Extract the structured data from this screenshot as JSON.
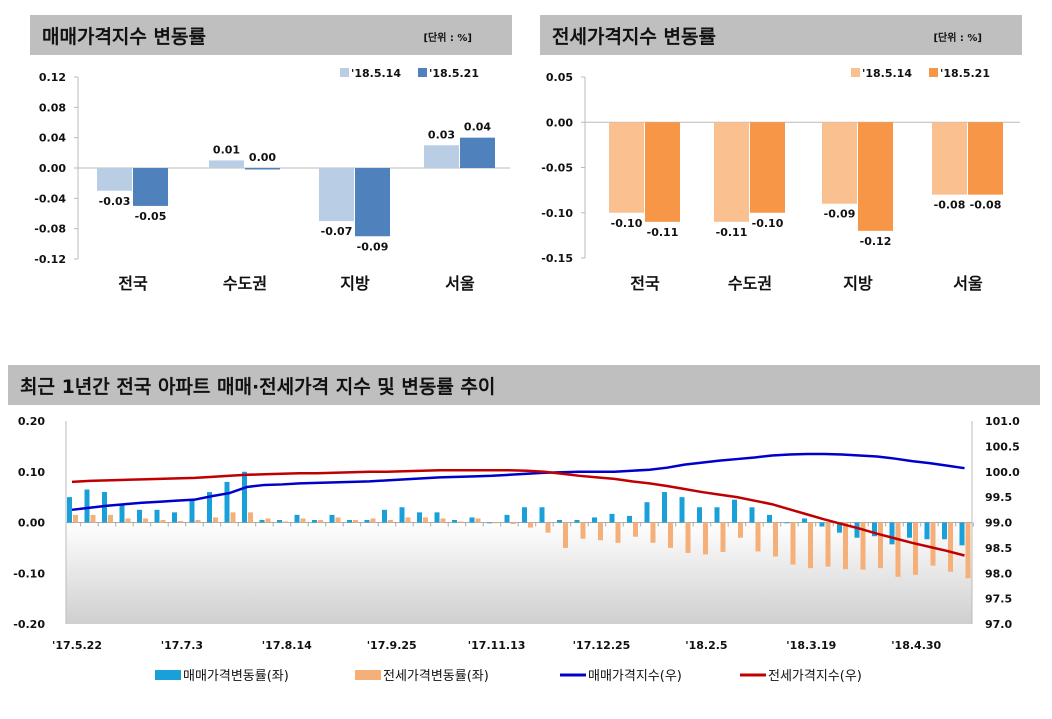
{
  "chart_data": [
    {
      "type": "bar",
      "title": "매매가격지수 변동률",
      "unit_note": "[단위 : %]",
      "categories": [
        "전국",
        "수도권",
        "지방",
        "서울"
      ],
      "series": [
        {
          "name": "'18.5.14",
          "values": [
            -0.03,
            0.01,
            -0.07,
            0.03
          ],
          "color": "#b9cde5"
        },
        {
          "name": "'18.5.21",
          "values": [
            -0.05,
            0.0,
            -0.09,
            0.04
          ],
          "color": "#4f81bd"
        }
      ],
      "yticks": [
        "0.12",
        "0.08",
        "0.04",
        "0.00",
        "-0.04",
        "-0.08",
        "-0.12"
      ],
      "ylim": [
        -0.12,
        0.12
      ],
      "legend": "top-right"
    },
    {
      "type": "bar",
      "title": "전세가격지수 변동률",
      "unit_note": "[단위 : %]",
      "categories": [
        "전국",
        "수도권",
        "지방",
        "서울"
      ],
      "series": [
        {
          "name": "'18.5.14",
          "values": [
            -0.1,
            -0.11,
            -0.09,
            -0.08
          ],
          "color": "#fac090"
        },
        {
          "name": "'18.5.21",
          "values": [
            -0.11,
            -0.1,
            -0.12,
            -0.08
          ],
          "color": "#f79646"
        }
      ],
      "yticks": [
        "0.05",
        "0.00",
        "-0.05",
        "-0.10",
        "-0.15"
      ],
      "ylim": [
        -0.15,
        0.05
      ],
      "legend": "top-right"
    },
    {
      "type": "bar+line",
      "title": "최근 1년간 전국 아파트 매매·전세가격 지수 및 변동률 추이",
      "xticks": [
        "'17.5.22",
        "'17.7.3",
        "'17.8.14",
        "'17.9.25",
        "'17.11.13",
        "'17.12.25",
        "'18.2.5",
        "'18.3.19",
        "'18.4.30"
      ],
      "yticks_left": [
        "0.20",
        "0.10",
        "0.00",
        "-0.10",
        "-0.20"
      ],
      "ylim_left": [
        -0.2,
        0.2
      ],
      "yticks_right": [
        "101.0",
        "100.5",
        "100.0",
        "99.5",
        "99.0",
        "98.5",
        "98.0",
        "97.5",
        "97.0"
      ],
      "ylim_right": [
        97.0,
        101.0
      ],
      "legend": "bottom",
      "series": [
        {
          "name": "매매가격변동률(좌)",
          "kind": "bar",
          "axis": "left",
          "color": "#1aa0d8",
          "values": [
            0.05,
            0.065,
            0.06,
            0.035,
            0.025,
            0.025,
            0.02,
            0.045,
            0.06,
            0.08,
            0.1,
            0.005,
            0.005,
            0.015,
            0.005,
            0.015,
            0.005,
            0.005,
            0.025,
            0.03,
            0.02,
            0.02,
            0.005,
            0.01,
            0.0,
            0.015,
            0.03,
            0.03,
            0.005,
            0.005,
            0.01,
            0.017,
            0.013,
            0.04,
            0.06,
            0.05,
            0.03,
            0.03,
            0.045,
            0.03,
            0.015,
            0.0,
            0.008,
            -0.008,
            -0.02,
            -0.03,
            -0.027,
            -0.043,
            -0.03,
            -0.033,
            -0.033,
            -0.045
          ]
        },
        {
          "name": "전세가격변동률(좌)",
          "kind": "bar",
          "axis": "left",
          "color": "#f5b07a",
          "values": [
            0.015,
            0.015,
            0.015,
            0.008,
            0.008,
            0.005,
            0.003,
            0.005,
            0.01,
            0.02,
            0.02,
            0.008,
            0.002,
            0.008,
            0.005,
            0.01,
            0.005,
            0.008,
            0.005,
            0.01,
            0.01,
            0.008,
            0.002,
            0.008,
            0.0,
            -0.003,
            -0.01,
            -0.02,
            -0.05,
            -0.032,
            -0.035,
            -0.04,
            -0.028,
            -0.04,
            -0.05,
            -0.06,
            -0.063,
            -0.058,
            -0.03,
            -0.057,
            -0.067,
            -0.083,
            -0.09,
            -0.087,
            -0.092,
            -0.093,
            -0.09,
            -0.107,
            -0.103,
            -0.085,
            -0.097,
            -0.11
          ]
        },
        {
          "name": "매매가격지수(우)",
          "kind": "line",
          "axis": "right",
          "color": "#0000cc",
          "values": [
            99.25,
            99.29,
            99.33,
            99.36,
            99.39,
            99.41,
            99.43,
            99.45,
            99.52,
            99.58,
            99.7,
            99.74,
            99.75,
            99.77,
            99.78,
            99.79,
            99.8,
            99.81,
            99.83,
            99.85,
            99.87,
            99.89,
            99.9,
            99.91,
            99.92,
            99.94,
            99.96,
            99.98,
            99.99,
            100.0,
            100.0,
            100.0,
            100.02,
            100.04,
            100.08,
            100.14,
            100.18,
            100.22,
            100.25,
            100.28,
            100.32,
            100.34,
            100.35,
            100.35,
            100.34,
            100.32,
            100.3,
            100.26,
            100.21,
            100.17,
            100.12,
            100.07
          ]
        },
        {
          "name": "전세가격지수(우)",
          "kind": "line",
          "axis": "right",
          "color": "#c00000",
          "values": [
            99.8,
            99.82,
            99.83,
            99.84,
            99.85,
            99.86,
            99.87,
            99.88,
            99.9,
            99.92,
            99.94,
            99.95,
            99.96,
            99.97,
            99.97,
            99.98,
            99.99,
            100.0,
            100.0,
            100.01,
            100.02,
            100.03,
            100.03,
            100.03,
            100.03,
            100.03,
            100.02,
            100.0,
            99.96,
            99.92,
            99.89,
            99.86,
            99.81,
            99.77,
            99.72,
            99.66,
            99.6,
            99.55,
            99.5,
            99.43,
            99.36,
            99.26,
            99.16,
            99.06,
            98.97,
            98.88,
            98.78,
            98.69,
            98.6,
            98.52,
            98.44,
            98.35
          ]
        }
      ]
    }
  ]
}
